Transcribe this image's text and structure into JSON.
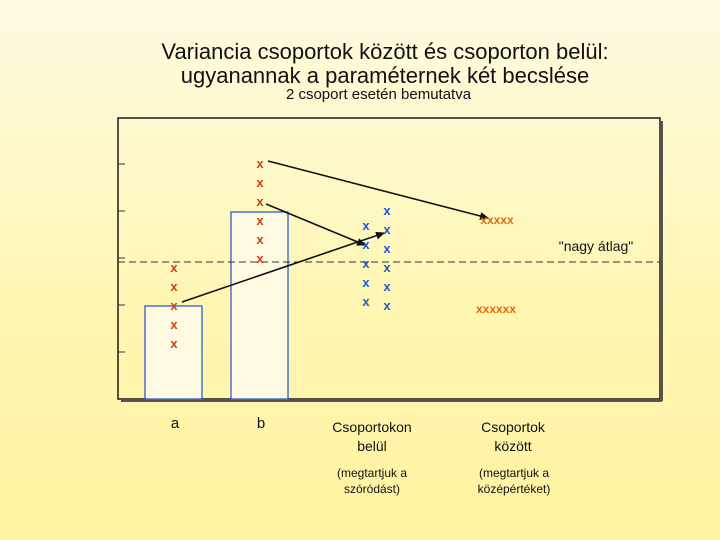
{
  "title_line1": "Variancia csoportok között és csoporton belül:",
  "title_line2": "ugyanannak a paraméternek két becslése",
  "subtitle": "2 csoport esetén bemutatva",
  "mark": "x",
  "colors": {
    "bar": "#fffbe2",
    "bar_stroke": "#1e50c8",
    "red_mark": "#d23c14",
    "blue_mark": "#1e5ad2",
    "orange_mark": "#e66a10"
  },
  "labels": {
    "group_a": "a",
    "group_b": "b",
    "within_line1": "Csoportokon",
    "within_line2": "belül",
    "between_line1": "Csoportok",
    "between_line2": "között",
    "within_note_line1": "(megtartjuk a",
    "within_note_line2": "szóródást)",
    "between_note_line1": "(megtartjuk a",
    "between_note_line2": "középértéket)",
    "grand_mean": "\"nagy átlag\"",
    "between_high": "xxxxx",
    "between_low": "xxxxxx"
  }
}
